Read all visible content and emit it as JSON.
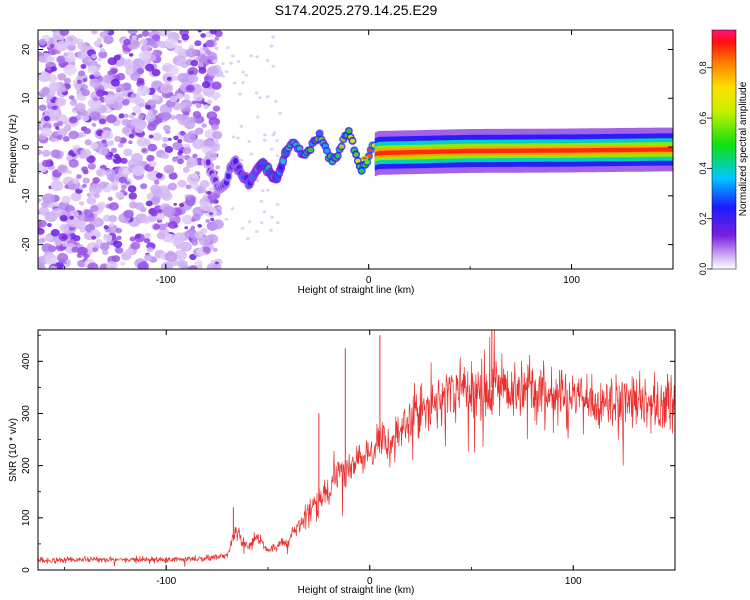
{
  "title": "S174.2025.279.14.25.E29",
  "chart_data": [
    {
      "type": "heatmap",
      "title": "S174.2025.279.14.25.E29",
      "xlabel": "Height of straight line (km)",
      "ylabel": "Frequency (Hz)",
      "xlim": [
        -163,
        150
      ],
      "ylim": [
        -25,
        24
      ],
      "xticks": [
        -100,
        0,
        100
      ],
      "yticks": [
        -20,
        -10,
        0,
        10,
        20
      ],
      "colorbar": {
        "label": "Normalized spectral amplitude",
        "range": [
          0.0,
          0.95
        ],
        "ticks": [
          0.0,
          0.2,
          0.4,
          0.6,
          0.8
        ]
      },
      "features": {
        "noise_region_km": [
          -163,
          -78
        ],
        "signal_trace": [
          {
            "km": -80,
            "hz": -5.5,
            "amp": 0.15
          },
          {
            "km": -70,
            "hz": -6.5,
            "amp": 0.25
          },
          {
            "km": -60,
            "hz": -5.0,
            "amp": 0.35
          },
          {
            "km": -50,
            "hz": -5.5,
            "amp": 0.4
          },
          {
            "km": -40,
            "hz": -2.0,
            "amp": 0.45
          },
          {
            "km": -30,
            "hz": 1.0,
            "amp": 0.5
          },
          {
            "km": -20,
            "hz": -1.0,
            "amp": 0.55
          },
          {
            "km": -10,
            "hz": 0.5,
            "amp": 0.6
          },
          {
            "km": -2,
            "hz": -2.3,
            "amp": 0.8
          },
          {
            "km": 5,
            "hz": -1.2,
            "amp": 0.9
          },
          {
            "km": 50,
            "hz": -0.8,
            "amp": 0.9
          },
          {
            "km": 100,
            "hz": -0.7,
            "amp": 0.9
          },
          {
            "km": 145,
            "hz": -0.5,
            "amp": 0.85
          }
        ]
      }
    },
    {
      "type": "line",
      "xlabel": "Height of straight line (km)",
      "ylabel": "SNR (10 * v/v)",
      "xlim": [
        -163,
        150
      ],
      "ylim": [
        0,
        460
      ],
      "xticks": [
        -100,
        0,
        100
      ],
      "yticks": [
        0,
        100,
        200,
        300,
        400
      ],
      "color": "#e8302e",
      "series": [
        {
          "name": "SNR",
          "x": [
            -163,
            -140,
            -120,
            -100,
            -80,
            -70,
            -66,
            -60,
            -55,
            -50,
            -45,
            -40,
            -35,
            -30,
            -25,
            -20,
            -15,
            -10,
            -5,
            0,
            5,
            10,
            15,
            20,
            25,
            30,
            35,
            40,
            45,
            50,
            60,
            70,
            80,
            90,
            100,
            110,
            120,
            130,
            140,
            150
          ],
          "values": [
            18,
            20,
            20,
            20,
            22,
            28,
            75,
            45,
            65,
            35,
            50,
            55,
            90,
            110,
            130,
            150,
            180,
            200,
            220,
            215,
            255,
            235,
            275,
            285,
            305,
            320,
            330,
            345,
            355,
            345,
            350,
            345,
            340,
            330,
            335,
            330,
            320,
            325,
            315,
            320
          ]
        }
      ],
      "spikes": [
        {
          "km": -67,
          "value": 120
        },
        {
          "km": -25,
          "value": 300
        },
        {
          "km": -12,
          "value": 425
        },
        {
          "km": 5,
          "value": 450
        },
        {
          "km": 60,
          "value": 460
        }
      ]
    }
  ]
}
